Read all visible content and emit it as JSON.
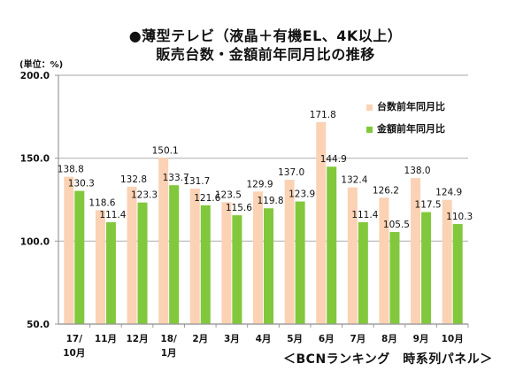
{
  "chart_data": {
    "type": "bar",
    "title": "●薄型テレビ（液晶＋有機EL、4K以上）",
    "subtitle": "販売台数・金額前年同月比の推移",
    "ylabel": "(単位：%)",
    "xlabel": "",
    "ylim": [
      50,
      200
    ],
    "yticks": [
      "50.0",
      "100.0",
      "150.0",
      "200.0"
    ],
    "ytick_values": [
      50,
      100,
      150,
      200
    ],
    "grid": true,
    "legend_position": "top-right",
    "categories": [
      [
        "17/",
        "10月"
      ],
      [
        "11月"
      ],
      [
        "12月"
      ],
      [
        "18/",
        "1月"
      ],
      [
        "2月"
      ],
      [
        "3月"
      ],
      [
        "4月"
      ],
      [
        "5月"
      ],
      [
        "6月"
      ],
      [
        "7月"
      ],
      [
        "8月"
      ],
      [
        "9月"
      ],
      [
        "10月"
      ]
    ],
    "series": [
      {
        "name": "台数前年同月比",
        "color": "#fbd2b4",
        "values": [
          138.8,
          118.6,
          132.8,
          150.1,
          131.7,
          123.5,
          129.9,
          137.0,
          171.8,
          132.4,
          126.2,
          138.0,
          124.9
        ]
      },
      {
        "name": "金額前年同月比",
        "color": "#82c83c",
        "values": [
          130.3,
          111.4,
          123.3,
          133.7,
          121.6,
          115.6,
          119.8,
          123.9,
          144.9,
          111.4,
          105.5,
          117.5,
          110.3
        ]
      }
    ],
    "labels": [
      [
        "138.8",
        "118.6",
        "132.8",
        "150.1",
        "131.7",
        "123.5",
        "129.9",
        "137.0",
        "171.8",
        "132.4",
        "126.2",
        "138.0",
        "124.9"
      ],
      [
        "130.3",
        "111.4",
        "123.3",
        "133.7",
        "121.6",
        "115.6",
        "119.8",
        "123.9",
        "144.9",
        "111.4",
        "105.5",
        "117.5",
        "110.3"
      ]
    ]
  },
  "source": "＜BCNランキング　時系列パネル＞"
}
